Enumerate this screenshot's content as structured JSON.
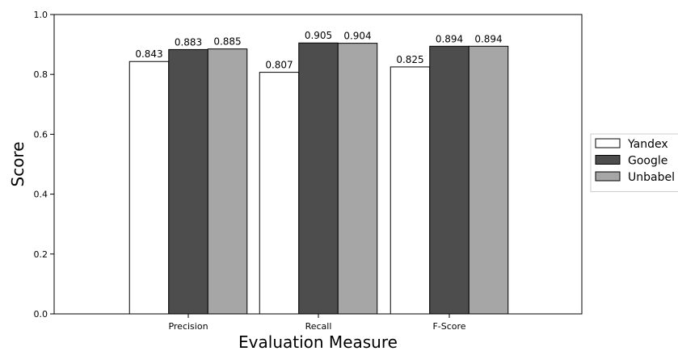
{
  "chart_data": {
    "type": "bar",
    "categories": [
      "Precision",
      "Recall",
      "F-Score"
    ],
    "series": [
      {
        "name": "Yandex",
        "values": [
          0.843,
          0.807,
          0.825
        ],
        "color": "#ffffff"
      },
      {
        "name": "Google",
        "values": [
          0.883,
          0.905,
          0.894
        ],
        "color": "#4d4d4d"
      },
      {
        "name": "Unbabel",
        "values": [
          0.885,
          0.904,
          0.894
        ],
        "color": "#a6a6a6"
      }
    ],
    "data_labels": [
      [
        "0.843",
        "0.807",
        "0.825"
      ],
      [
        "0.883",
        "0.905",
        "0.894"
      ],
      [
        "0.885",
        "0.904",
        "0.894"
      ]
    ],
    "xlabel": "Evaluation Measure",
    "ylabel": "Score",
    "ylim": [
      0.0,
      1.0
    ],
    "yticks": [
      "0.0",
      "0.2",
      "0.4",
      "0.6",
      "0.8",
      "1.0"
    ],
    "ytick_values": [
      0.0,
      0.2,
      0.4,
      0.6,
      0.8,
      1.0
    ],
    "grid": false,
    "legend_placement": "right, outside plot",
    "edge_color": "#000000"
  }
}
